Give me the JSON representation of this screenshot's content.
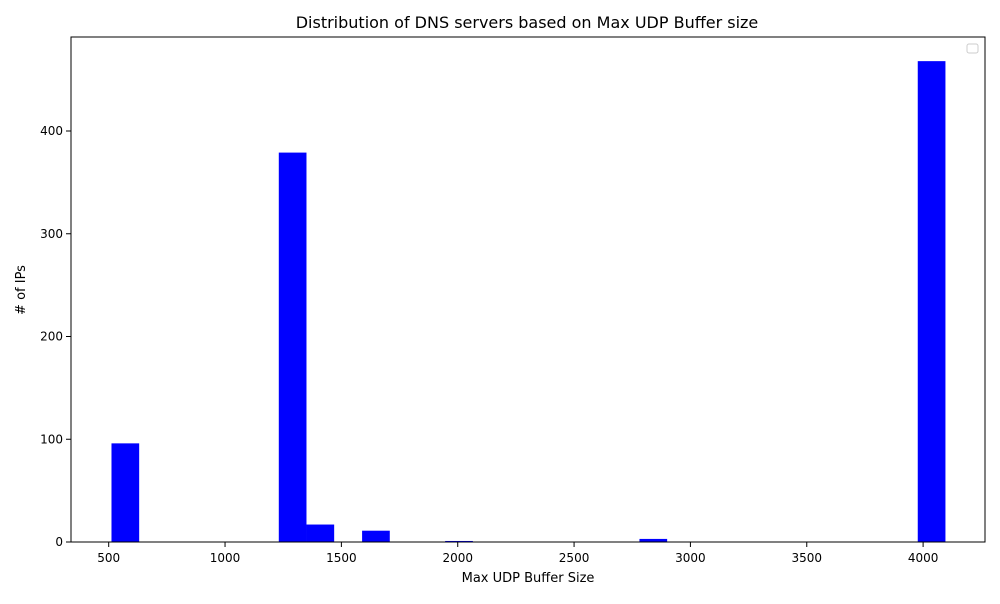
{
  "chart_data": {
    "type": "bar",
    "title": "Distribution of DNS servers based on Max UDP Buffer size",
    "xlabel": "Max UDP Buffer Size",
    "ylabel": "# of IPs",
    "xlim": [
      338,
      4266
    ],
    "ylim": [
      0,
      491.5
    ],
    "xticks": [
      500,
      1000,
      1500,
      2000,
      2500,
      3000,
      3500,
      4000
    ],
    "yticks": [
      0,
      100,
      200,
      300,
      400
    ],
    "bin_width": 119,
    "bar_color": "#0000ff",
    "legend": "top-right (empty)",
    "grid": false,
    "bars": [
      {
        "x0": 512,
        "x1": 631,
        "value": 96
      },
      {
        "x0": 1231,
        "x1": 1350,
        "value": 379
      },
      {
        "x0": 1350,
        "x1": 1469,
        "value": 17
      },
      {
        "x0": 1589,
        "x1": 1708,
        "value": 11
      },
      {
        "x0": 1946,
        "x1": 2065,
        "value": 1
      },
      {
        "x0": 2781,
        "x1": 2900,
        "value": 3
      },
      {
        "x0": 3977,
        "x1": 4096,
        "value": 468
      }
    ]
  }
}
